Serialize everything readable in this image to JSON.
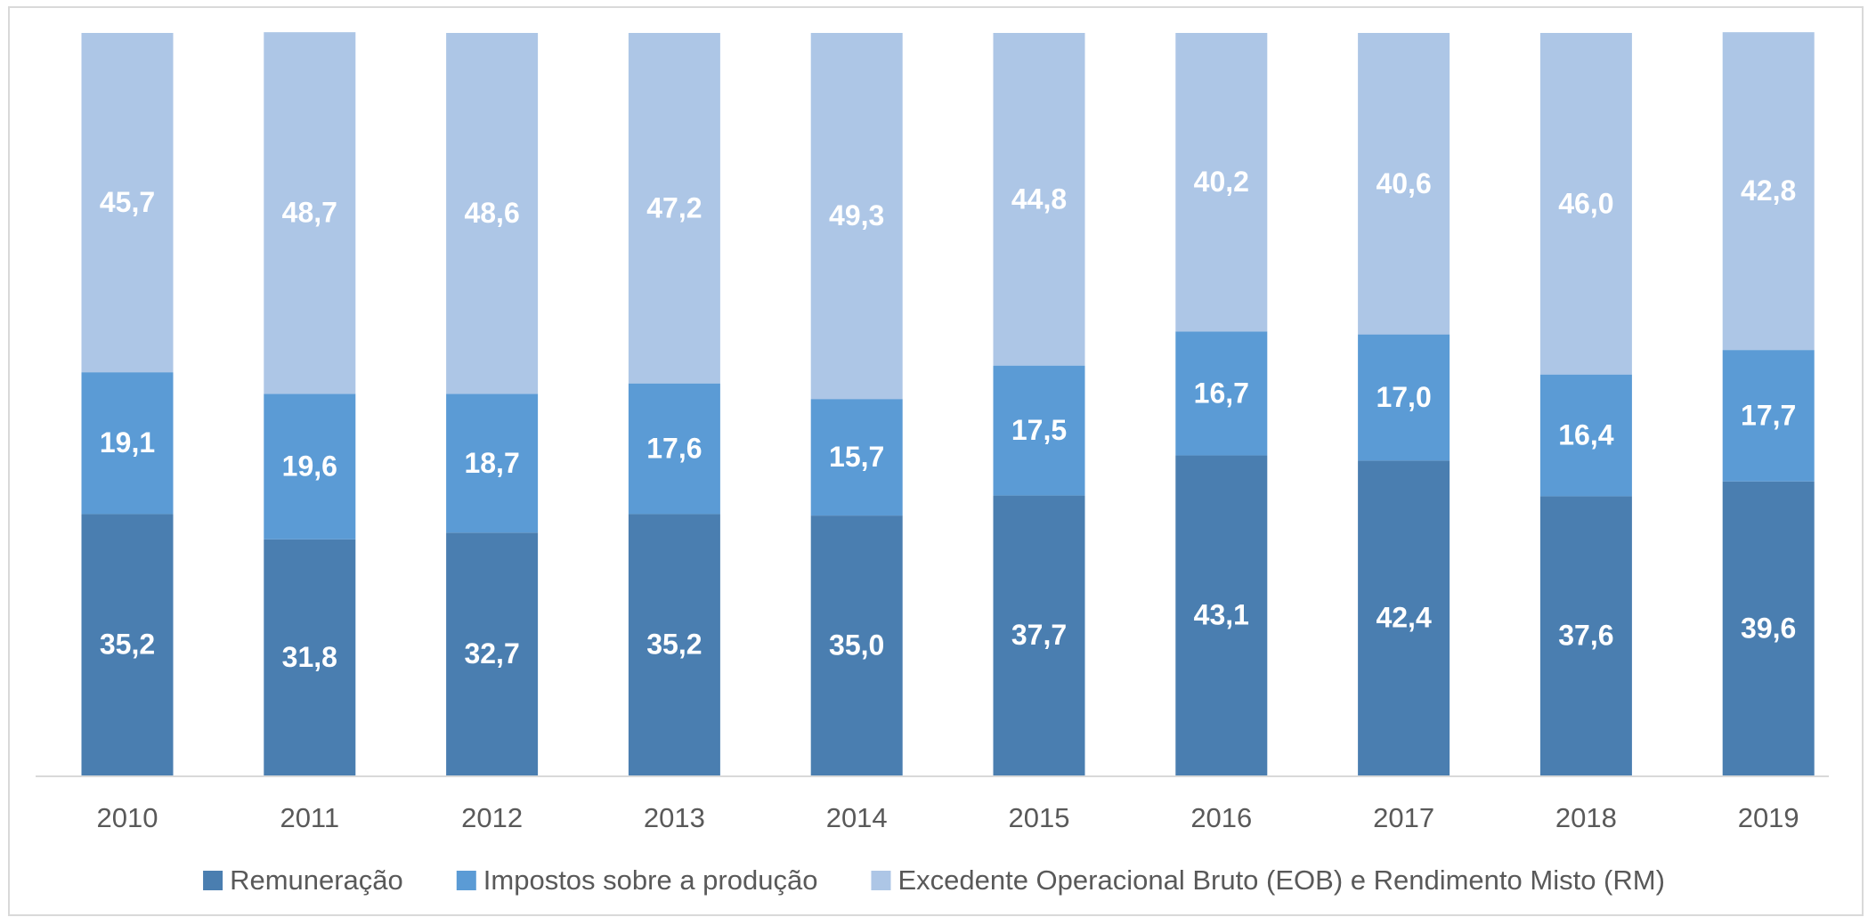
{
  "chart_data": {
    "type": "bar",
    "stacked": true,
    "categories": [
      "2010",
      "2011",
      "2012",
      "2013",
      "2014",
      "2015",
      "2016",
      "2017",
      "2018",
      "2019"
    ],
    "ylim": [
      0,
      100
    ],
    "series": [
      {
        "name": "Remuneração",
        "color": "#4a7eb0",
        "values": [
          35.2,
          31.8,
          32.7,
          35.2,
          35.0,
          37.7,
          43.1,
          42.4,
          37.6,
          39.6
        ],
        "value_labels": [
          "35,2",
          "31,8",
          "32,7",
          "35,2",
          "35,0",
          "37,7",
          "43,1",
          "42,4",
          "37,6",
          "39,6"
        ]
      },
      {
        "name": "Impostos sobre a produção",
        "color": "#5b9bd5",
        "values": [
          19.1,
          19.6,
          18.7,
          17.6,
          15.7,
          17.5,
          16.7,
          17.0,
          16.4,
          17.7
        ],
        "value_labels": [
          "19,1",
          "19,6",
          "18,7",
          "17,6",
          "15,7",
          "17,5",
          "16,7",
          "17,0",
          "16,4",
          "17,7"
        ]
      },
      {
        "name": "Excedente Operacional Bruto (EOB) e Rendimento Misto (RM)",
        "color": "#adc6e6",
        "values": [
          45.7,
          48.7,
          48.6,
          47.2,
          49.3,
          44.8,
          40.2,
          40.6,
          46.0,
          42.8
        ],
        "value_labels": [
          "45,7",
          "48,7",
          "48,6",
          "47,2",
          "49,3",
          "44,8",
          "40,2",
          "40,6",
          "46,0",
          "42,8"
        ]
      }
    ]
  }
}
